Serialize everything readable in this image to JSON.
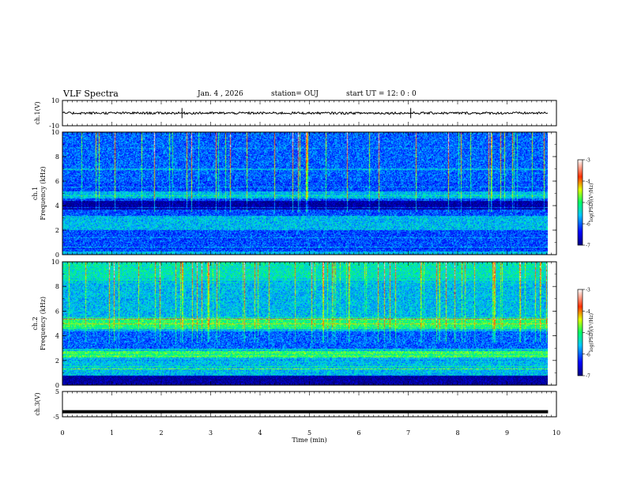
{
  "header": {
    "title": "VLF Spectra",
    "date": "Jan. 4 , 2026",
    "station": "station= OUJ",
    "start": "start UT = 12: 0 : 0"
  },
  "chart_data": [
    {
      "type": "line",
      "ylabel": "ch.1(V)",
      "ylim": [
        -10,
        10
      ],
      "yticks": [
        "10",
        "-10"
      ],
      "level": 0,
      "noise": 0.3
    },
    {
      "type": "heatmap",
      "ylabel_top": "ch.1",
      "ylabel": "Frequency (kHz)",
      "ylim": [
        0,
        10
      ],
      "yticks": [
        "10",
        "8",
        "6",
        "4",
        "2",
        "0"
      ],
      "colorbar": {
        "label": "log(PSD)(V²/Hz)",
        "range": [
          -7,
          -3
        ],
        "ticks": [
          "-3",
          "-4",
          "-5",
          "-6",
          "-7"
        ]
      }
    },
    {
      "type": "heatmap",
      "ylabel_top": "ch.2",
      "ylabel": "Frequency (kHz)",
      "ylim": [
        0,
        10
      ],
      "yticks": [
        "10",
        "8",
        "6",
        "4",
        "2",
        "0"
      ],
      "colorbar": {
        "label": "log(PSD)(V²/Hz)",
        "range": [
          -7,
          -3
        ],
        "ticks": [
          "-3",
          "-4",
          "-5",
          "-6",
          "-7"
        ]
      }
    },
    {
      "type": "line",
      "ylabel": "ch.3(V)",
      "ylim": [
        -5,
        5
      ],
      "yticks": [
        "5",
        "-5"
      ],
      "level": -3
    }
  ],
  "xaxis": {
    "label": "Time (min)",
    "range": [
      0,
      10
    ],
    "ticks": [
      "0",
      "1",
      "2",
      "3",
      "4",
      "5",
      "6",
      "7",
      "8",
      "9",
      "10"
    ],
    "data_end": 9.83
  }
}
